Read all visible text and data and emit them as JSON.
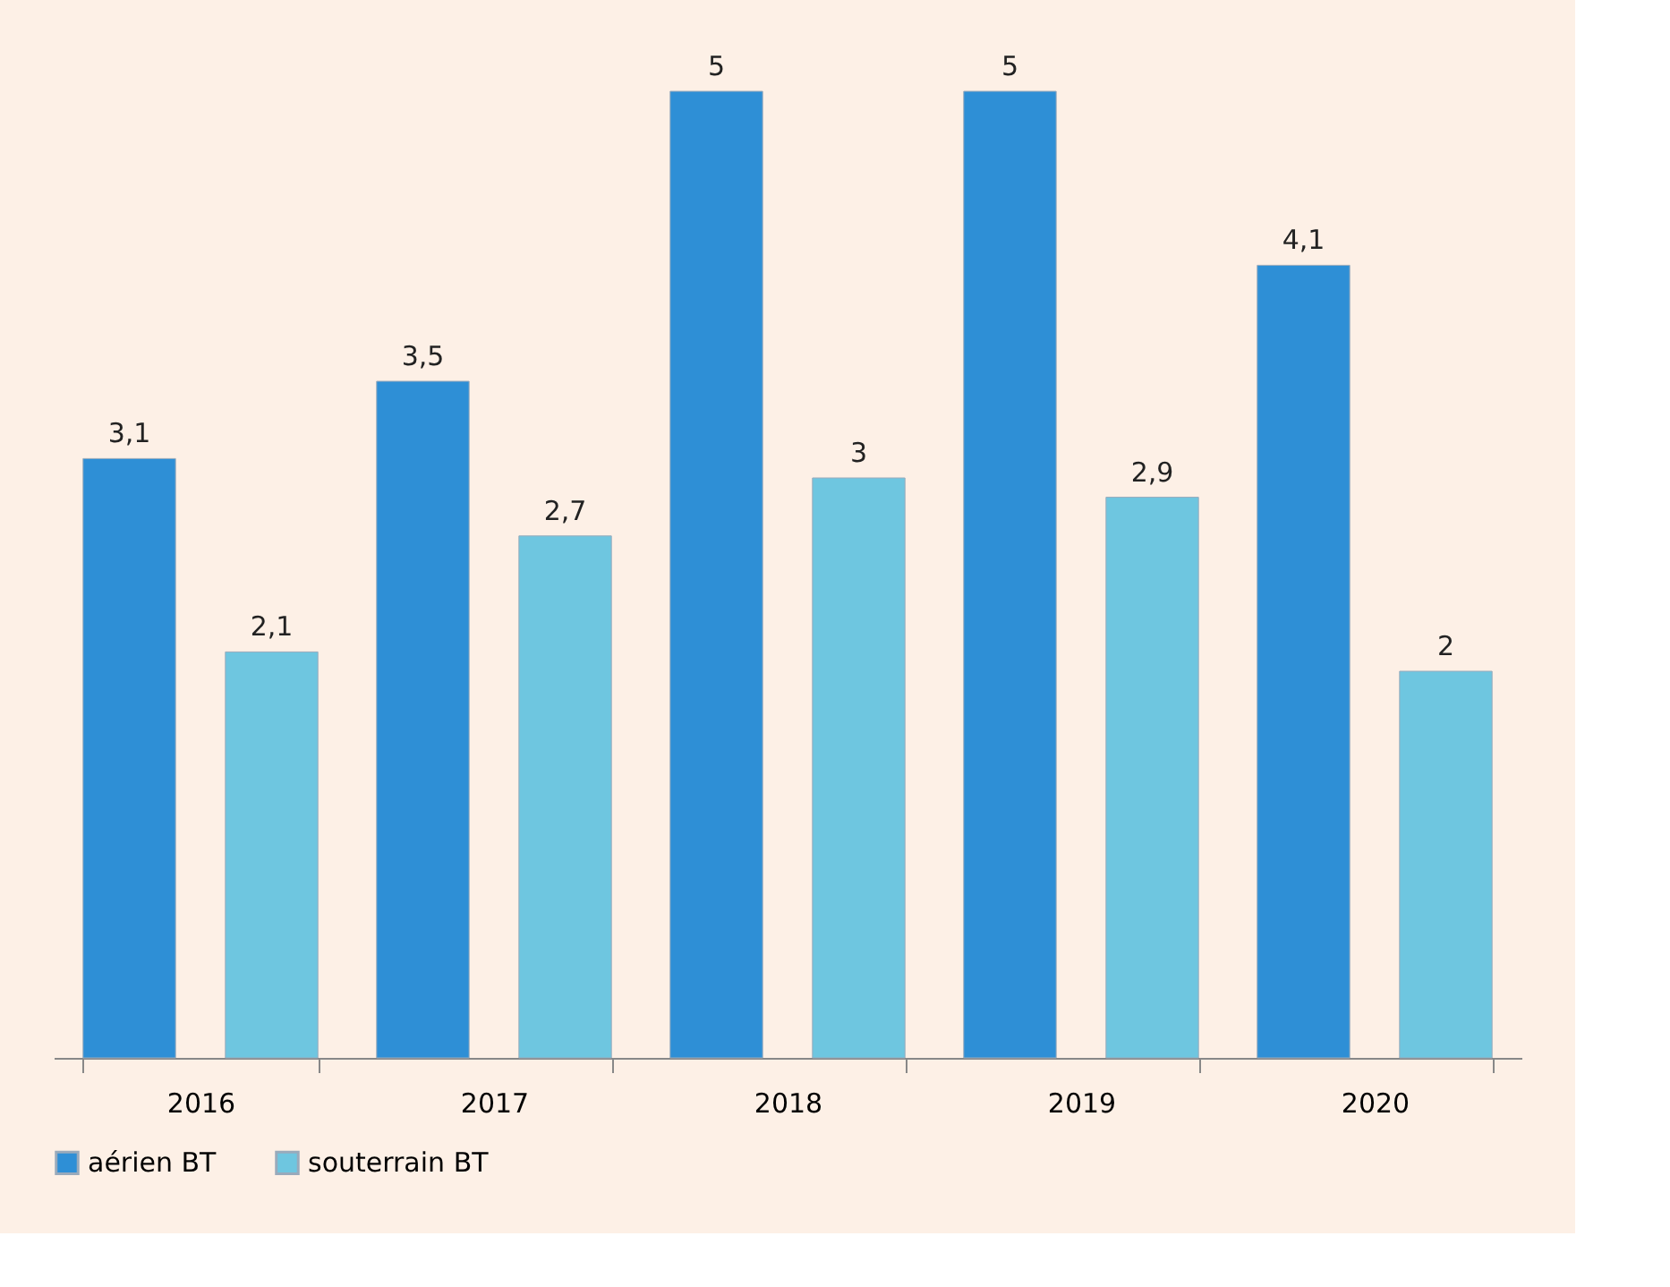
{
  "chart_data": {
    "type": "bar",
    "categories": [
      "2016",
      "2017",
      "2018",
      "2019",
      "2020"
    ],
    "series": [
      {
        "name": "aérien BT",
        "color": "#2e8fd6",
        "values": [
          3.1,
          3.5,
          5,
          5,
          4.1
        ],
        "value_labels": [
          "3,1",
          "3,5",
          "5",
          "5",
          "4,1"
        ]
      },
      {
        "name": "souterrain BT",
        "color": "#6ec6e0",
        "values": [
          2.1,
          2.7,
          3,
          2.9,
          2
        ],
        "value_labels": [
          "2,1",
          "2,7",
          "3",
          "2,9",
          "2"
        ]
      }
    ],
    "legend": "bottom",
    "grid": false,
    "tick_labels": "x"
  }
}
